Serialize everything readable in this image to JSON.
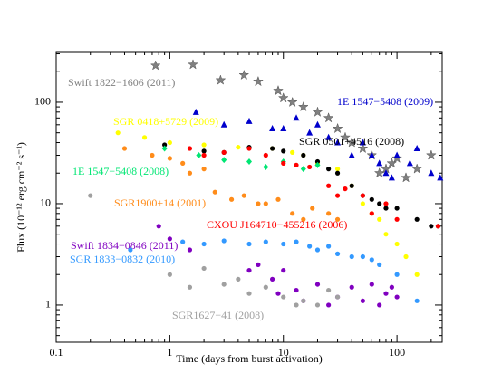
{
  "chart_data": {
    "type": "scatter",
    "xlabel": "Time (days from burst activation)",
    "ylabel": "Flux (10⁻¹² erg cm⁻² s⁻¹)",
    "xscale": "log",
    "yscale": "log",
    "xlim": [
      0.1,
      250
    ],
    "ylim": [
      0.43,
      316
    ],
    "xticks": [
      0.1,
      1,
      10,
      100
    ],
    "yticks": [
      1,
      10,
      100
    ],
    "series": [
      {
        "name": "Swift 1822−1606 (2011)",
        "color": "#808080",
        "marker": "star",
        "x": [
          0.75,
          1.6,
          2.8,
          4.5,
          6,
          9,
          10,
          12,
          15,
          20,
          25,
          30,
          35,
          40,
          50,
          60,
          70,
          80,
          90,
          100,
          120,
          150,
          200
        ],
        "values": [
          230,
          235,
          165,
          185,
          160,
          130,
          110,
          100,
          90,
          80,
          70,
          55,
          45,
          40,
          35,
          30,
          20,
          22,
          25,
          28,
          18,
          22,
          30
        ]
      },
      {
        "name": "1E 1547−5408 (2009)",
        "color": "#0000cc",
        "marker": "triangle",
        "x": [
          1.7,
          3,
          5,
          8,
          10,
          13,
          17,
          20,
          25,
          30,
          40,
          50,
          60,
          70,
          80,
          90,
          100,
          130,
          150,
          200,
          240
        ],
        "values": [
          80,
          60,
          65,
          55,
          55,
          70,
          50,
          60,
          45,
          40,
          30,
          40,
          30,
          25,
          20,
          18,
          30,
          25,
          35,
          20,
          18
        ]
      },
      {
        "name": "SGR 0418+5729 (2009)",
        "color": "#ffff00",
        "marker": "circle",
        "x": [
          0.35,
          0.6,
          1,
          2,
          4,
          8,
          12,
          15,
          20,
          30,
          40,
          50,
          60,
          70,
          80,
          100,
          120,
          150
        ],
        "values": [
          50,
          45,
          40,
          38,
          36,
          35,
          32,
          30,
          25,
          22,
          15,
          10,
          8,
          7,
          5,
          4,
          3,
          2
        ]
      },
      {
        "name": "SGR 0501+4516 (2008)",
        "color": "#000000",
        "marker": "circle",
        "x": [
          0.9,
          2,
          3,
          5,
          8,
          10,
          15,
          20,
          25,
          30,
          40,
          50,
          60,
          70,
          80,
          100,
          150,
          200,
          230
        ],
        "values": [
          38,
          33,
          32,
          36,
          35,
          33,
          30,
          26,
          22,
          20,
          15,
          12,
          11,
          10,
          9,
          9,
          7,
          6,
          6
        ]
      },
      {
        "name": "1E 1547−5408 (2008)",
        "color": "#00e673",
        "marker": "diamond",
        "x": [
          0.9,
          1.8,
          3,
          5,
          7,
          10,
          15,
          20
        ],
        "values": [
          35,
          30,
          27,
          26,
          23,
          26,
          22,
          24
        ]
      },
      {
        "name": "SGR1900+14 (2001)",
        "color": "#ff8c1a",
        "marker": "circle",
        "x": [
          0.4,
          0.7,
          1,
          1.3,
          1.5,
          2,
          2.5,
          3.5,
          4.5,
          6,
          7,
          9,
          12,
          15,
          18,
          25,
          30
        ],
        "values": [
          35,
          30,
          28,
          25,
          20,
          22,
          13,
          11,
          12,
          10,
          10,
          11,
          8,
          7,
          9,
          8,
          7
        ]
      },
      {
        "name": "CXOU J164710−455216 (2006)",
        "color": "#ff0000",
        "marker": "circle",
        "x": [
          1.5,
          2,
          3,
          5,
          7,
          10,
          13,
          17,
          25,
          30,
          35,
          50,
          60,
          80,
          100,
          230
        ],
        "values": [
          35,
          30,
          32,
          35,
          30,
          25,
          24,
          23,
          15,
          12,
          14,
          12,
          8,
          10,
          7,
          6
        ]
      },
      {
        "name": "Swift 1834−0846 (2011)",
        "color": "#8000c0",
        "marker": "circle",
        "x": [
          0.8,
          1,
          1.5,
          5,
          6,
          8,
          9,
          10,
          13,
          15,
          20,
          25,
          30,
          40,
          50,
          60,
          70,
          80,
          90,
          100
        ],
        "values": [
          6,
          4.5,
          3.5,
          2.2,
          2.5,
          1.8,
          1.3,
          2.2,
          1.4,
          1.1,
          1.6,
          1,
          1.2,
          1.5,
          1.1,
          1.6,
          1,
          1.3,
          1.5,
          1.2
        ]
      },
      {
        "name": "SGR 1833−0832 (2010)",
        "color": "#3399ff",
        "marker": "circle",
        "x": [
          0.45,
          1.3,
          2,
          3,
          5,
          7,
          10,
          13,
          17,
          20,
          25,
          30,
          40,
          50,
          60,
          70,
          100,
          150
        ],
        "values": [
          3.5,
          4.2,
          4,
          4.3,
          4,
          4.2,
          4,
          4.2,
          3.8,
          3.5,
          3.8,
          3.2,
          3,
          3,
          2.8,
          2.5,
          2,
          1.1
        ]
      },
      {
        "name": "SGR1627−41 (2008)",
        "color": "#a0a0a0",
        "marker": "circle",
        "x": [
          0.2,
          1,
          1.5,
          2,
          3,
          4,
          5,
          7,
          10,
          13,
          15,
          20,
          25,
          30
        ],
        "values": [
          12,
          2,
          1.5,
          2.3,
          1.6,
          1.8,
          1.3,
          1.5,
          1.2,
          1.0,
          1.1,
          1,
          1.4,
          1.2
        ]
      }
    ]
  }
}
